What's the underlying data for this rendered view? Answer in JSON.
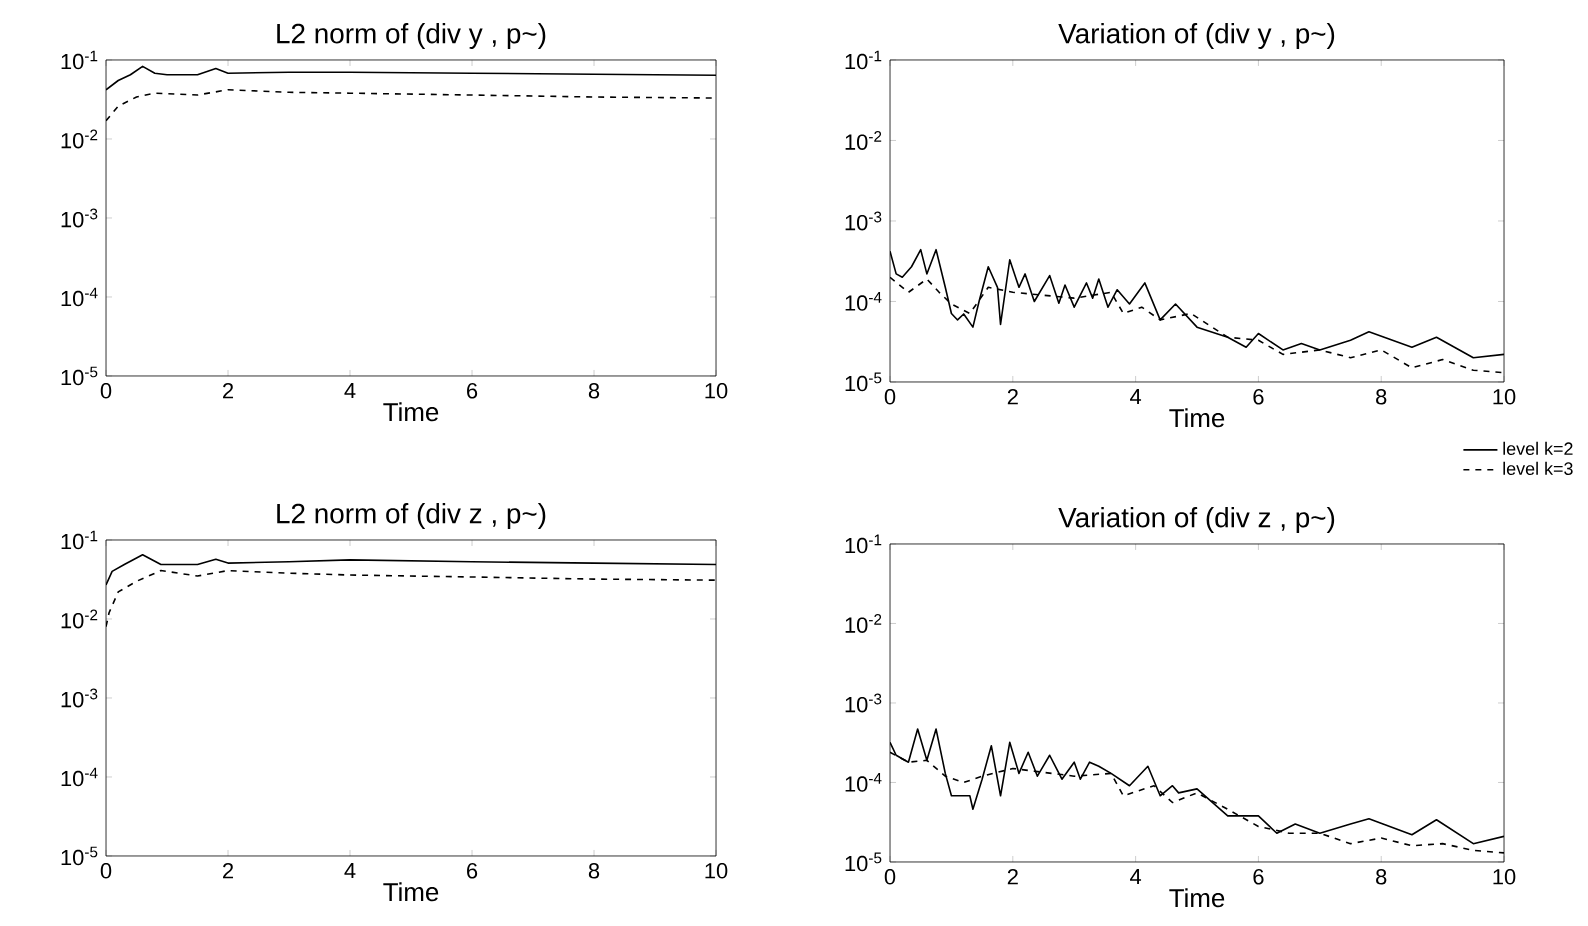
{
  "chart_data": [
    {
      "type": "line",
      "title": "L2 norm of (div y , p~)",
      "xlabel": "Time",
      "log": "y",
      "xlim": [
        0,
        10
      ],
      "xticks": [
        0,
        2,
        4,
        6,
        8,
        10
      ],
      "ylim": [
        1e-05,
        0.1
      ],
      "yticks": [
        {
          "value": 0.1,
          "label": "10$^{-1}$"
        },
        {
          "value": 0.01,
          "label": "10$^{-2}$"
        },
        {
          "value": 0.001,
          "label": "10$^{-3}$"
        },
        {
          "value": 0.0001,
          "label": "10$^{-4}$"
        },
        {
          "value": 1e-05,
          "label": "10$^{-5}$"
        }
      ],
      "series": [
        {
          "color": "#000000",
          "line_style": "solid",
          "x": [
            0,
            0.2,
            0.4,
            0.6,
            0.8,
            1.0,
            1.5,
            1.8,
            2.0,
            3,
            4,
            6,
            8,
            10
          ],
          "values": [
            0.042,
            0.055,
            0.065,
            0.083,
            0.068,
            0.065,
            0.065,
            0.078,
            0.068,
            0.07,
            0.07,
            0.068,
            0.066,
            0.064
          ]
        },
        {
          "color": "#000000",
          "line_style": "dashed",
          "x": [
            0,
            0.2,
            0.5,
            0.8,
            1.5,
            2.0,
            3,
            4,
            6,
            8,
            10
          ],
          "values": [
            0.017,
            0.026,
            0.034,
            0.038,
            0.036,
            0.042,
            0.039,
            0.038,
            0.036,
            0.034,
            0.033
          ]
        }
      ]
    },
    {
      "type": "line",
      "title": "Variation of (div y , p~)",
      "xlabel": "Time",
      "log": "y",
      "legend": "bottom right",
      "xlim": [
        0,
        10
      ],
      "xticks": [
        0,
        2,
        4,
        6,
        8,
        10
      ],
      "ylim": [
        1e-05,
        0.1
      ],
      "yticks": [
        {
          "value": 0.1,
          "label": "10$^{-1}$"
        },
        {
          "value": 0.01,
          "label": "10$^{-2}$"
        },
        {
          "value": 0.001,
          "label": "10$^{-3}$"
        },
        {
          "value": 0.0001,
          "label": "10$^{-4}$"
        },
        {
          "value": 1e-05,
          "label": "10$^{-5}$"
        }
      ],
      "series": [
        {
          "name": "level k=2",
          "color": "#000000",
          "line_style": "solid",
          "x": [
            0,
            0.1,
            0.2,
            0.35,
            0.5,
            0.6,
            0.75,
            0.9,
            1.0,
            1.1,
            1.2,
            1.35,
            1.45,
            1.6,
            1.75,
            1.8,
            1.95,
            2.1,
            2.2,
            2.35,
            2.6,
            2.75,
            2.85,
            3.0,
            3.2,
            3.3,
            3.4,
            3.55,
            3.7,
            3.9,
            4.15,
            4.4,
            4.65,
            5.0,
            5.5,
            5.8,
            6.0,
            6.4,
            6.7,
            7.0,
            7.5,
            7.8,
            8.5,
            8.9,
            9.5,
            10
          ],
          "values": [
            0.00042,
            0.00022,
            0.0002,
            0.00027,
            0.00044,
            0.00022,
            0.00044,
            0.00015,
            7.1e-05,
            5.9e-05,
            7e-05,
            4.8e-05,
            0.0001,
            0.00027,
            0.00015,
            5.2e-05,
            0.00033,
            0.00015,
            0.00022,
            0.0001,
            0.00021,
            9.5e-05,
            0.00016,
            8.5e-05,
            0.00017,
            0.00011,
            0.00019,
            8.5e-05,
            0.00014,
            9.3e-05,
            0.00017,
            5.9e-05,
            9.3e-05,
            4.8e-05,
            3.6e-05,
            2.7e-05,
            4e-05,
            2.5e-05,
            3e-05,
            2.5e-05,
            3.3e-05,
            4.2e-05,
            2.7e-05,
            3.6e-05,
            2e-05,
            2.2e-05
          ]
        },
        {
          "name": "level k=3",
          "color": "#000000",
          "line_style": "dashed",
          "x": [
            0,
            0.3,
            0.6,
            0.8,
            1.0,
            1.3,
            1.6,
            2,
            3,
            3.6,
            3.8,
            4.1,
            4.4,
            4.9,
            5.5,
            6.0,
            6.4,
            7,
            7.5,
            8,
            8.5,
            9,
            9.5,
            10
          ],
          "values": [
            0.0002,
            0.00013,
            0.00019,
            0.00013,
            9.3e-05,
            7.1e-05,
            0.00015,
            0.00013,
            0.00011,
            0.00013,
            7.1e-05,
            8.5e-05,
            5.9e-05,
            7.1e-05,
            3.6e-05,
            3.3e-05,
            2.2e-05,
            2.5e-05,
            2e-05,
            2.5e-05,
            1.5e-05,
            1.9e-05,
            1.4e-05,
            1.3e-05
          ]
        }
      ]
    },
    {
      "type": "line",
      "title": "L2 norm of (div z , p~)",
      "xlabel": "Time",
      "log": "y",
      "xlim": [
        0,
        10
      ],
      "xticks": [
        0,
        2,
        4,
        6,
        8,
        10
      ],
      "ylim": [
        1e-05,
        0.1
      ],
      "yticks": [
        {
          "value": 0.1,
          "label": "10$^{-1}$"
        },
        {
          "value": 0.01,
          "label": "10$^{-2}$"
        },
        {
          "value": 0.001,
          "label": "10$^{-3}$"
        },
        {
          "value": 0.0001,
          "label": "10$^{-4}$"
        },
        {
          "value": 1e-05,
          "label": "10$^{-5}$"
        }
      ],
      "series": [
        {
          "color": "#000000",
          "line_style": "solid",
          "x": [
            0,
            0.1,
            0.3,
            0.6,
            0.9,
            1.5,
            1.8,
            2.0,
            3,
            4,
            6,
            8,
            10
          ],
          "values": [
            0.027,
            0.04,
            0.049,
            0.065,
            0.049,
            0.049,
            0.057,
            0.051,
            0.053,
            0.056,
            0.053,
            0.051,
            0.049
          ]
        },
        {
          "color": "#000000",
          "line_style": "dashed",
          "x": [
            0,
            0.05,
            0.2,
            0.5,
            0.9,
            1.5,
            2.0,
            3,
            4,
            6,
            8,
            10
          ],
          "values": [
            0.008,
            0.012,
            0.022,
            0.03,
            0.041,
            0.035,
            0.041,
            0.038,
            0.036,
            0.034,
            0.032,
            0.031
          ]
        }
      ]
    },
    {
      "type": "line",
      "title": "Variation of (div z , p~)",
      "xlabel": "Time",
      "log": "y",
      "xlim": [
        0,
        10
      ],
      "xticks": [
        0,
        2,
        4,
        6,
        8,
        10
      ],
      "ylim": [
        1e-05,
        0.1
      ],
      "yticks": [
        {
          "value": 0.1,
          "label": "10$^{-1}$"
        },
        {
          "value": 0.01,
          "label": "10$^{-2}$"
        },
        {
          "value": 0.001,
          "label": "10$^{-3}$"
        },
        {
          "value": 0.0001,
          "label": "10$^{-4}$"
        },
        {
          "value": 1e-05,
          "label": "10$^{-5}$"
        }
      ],
      "series": [
        {
          "color": "#000000",
          "line_style": "solid",
          "x": [
            0,
            0.1,
            0.3,
            0.45,
            0.6,
            0.75,
            0.9,
            1.0,
            1.3,
            1.35,
            1.5,
            1.65,
            1.8,
            1.95,
            2.1,
            2.25,
            2.4,
            2.6,
            2.8,
            3.0,
            3.1,
            3.25,
            3.4,
            3.6,
            3.9,
            4.2,
            4.4,
            4.6,
            4.7,
            5.0,
            5.5,
            6.0,
            6.3,
            6.6,
            7.0,
            7.5,
            7.8,
            8.5,
            8.9,
            9.5,
            10
          ],
          "values": [
            0.00032,
            0.00022,
            0.00018,
            0.00047,
            0.00019,
            0.00047,
            0.00013,
            6.8e-05,
            6.8e-05,
            4.6e-05,
            0.00011,
            0.00029,
            6.8e-05,
            0.00032,
            0.00013,
            0.00024,
            0.00012,
            0.00022,
            0.00011,
            0.00018,
            0.00011,
            0.00018,
            0.00016,
            0.00013,
            9.1e-05,
            0.00016,
            6.8e-05,
            9.1e-05,
            7.4e-05,
            8.3e-05,
            3.8e-05,
            3.8e-05,
            2.3e-05,
            3e-05,
            2.3e-05,
            3e-05,
            3.5e-05,
            2.2e-05,
            3.4e-05,
            1.7e-05,
            2.1e-05
          ]
        },
        {
          "color": "#000000",
          "line_style": "dashed",
          "x": [
            0,
            0.3,
            0.6,
            0.9,
            1.2,
            1.5,
            2,
            3,
            3.6,
            3.8,
            4.3,
            4.6,
            5.0,
            5.5,
            6.0,
            6.5,
            7,
            7.5,
            8,
            8.5,
            9,
            9.5,
            10
          ],
          "values": [
            0.00024,
            0.00018,
            0.00019,
            0.00012,
            0.0001,
            0.00012,
            0.00015,
            0.00012,
            0.00013,
            6.8e-05,
            9.1e-05,
            5.6e-05,
            7.4e-05,
            4.6e-05,
            2.8e-05,
            2.3e-05,
            2.3e-05,
            1.7e-05,
            2e-05,
            1.6e-05,
            1.7e-05,
            1.4e-05,
            1.3e-05
          ]
        }
      ]
    }
  ]
}
